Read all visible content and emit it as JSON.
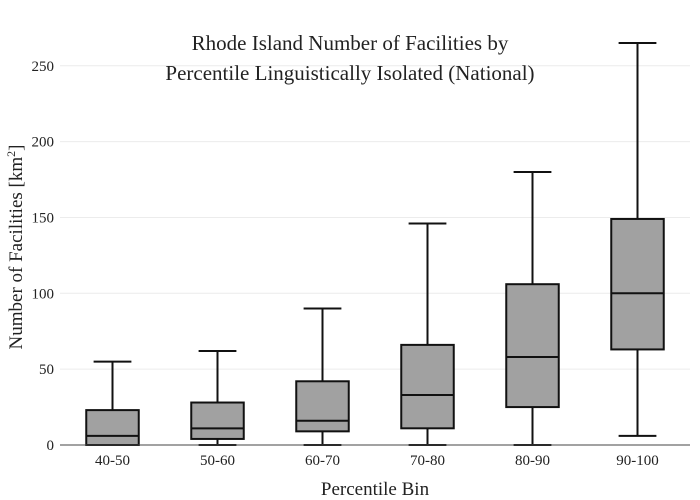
{
  "chart_data": {
    "type": "box",
    "title_lines": [
      "Rhode Island Number of Facilities by",
      "Percentile Linguistically Isolated (National)"
    ],
    "xlabel": "Percentile Bin",
    "ylabel_text": "Number of Facilities  [km",
    "ylabel_sup": "2",
    "ylabel_close": "]",
    "ylim": [
      0,
      265
    ],
    "yticks": [
      0,
      50,
      100,
      150,
      200,
      250
    ],
    "grid": true,
    "categories": [
      "40-50",
      "50-60",
      "60-70",
      "70-80",
      "80-90",
      "90-100"
    ],
    "boxes": [
      {
        "min": 0,
        "q1": 0,
        "median": 6,
        "q3": 23,
        "max": 55
      },
      {
        "min": 0,
        "q1": 4,
        "median": 11,
        "q3": 28,
        "max": 62
      },
      {
        "min": 0,
        "q1": 9,
        "median": 16,
        "q3": 42,
        "max": 90
      },
      {
        "min": 0,
        "q1": 11,
        "median": 33,
        "q3": 66,
        "max": 146
      },
      {
        "min": 0,
        "q1": 25,
        "median": 58,
        "q3": 106,
        "max": 180
      },
      {
        "min": 6,
        "q1": 63,
        "median": 100,
        "q3": 149,
        "max": 265
      }
    ],
    "box_color": "#a1a1a1",
    "line_color": "#111111"
  }
}
